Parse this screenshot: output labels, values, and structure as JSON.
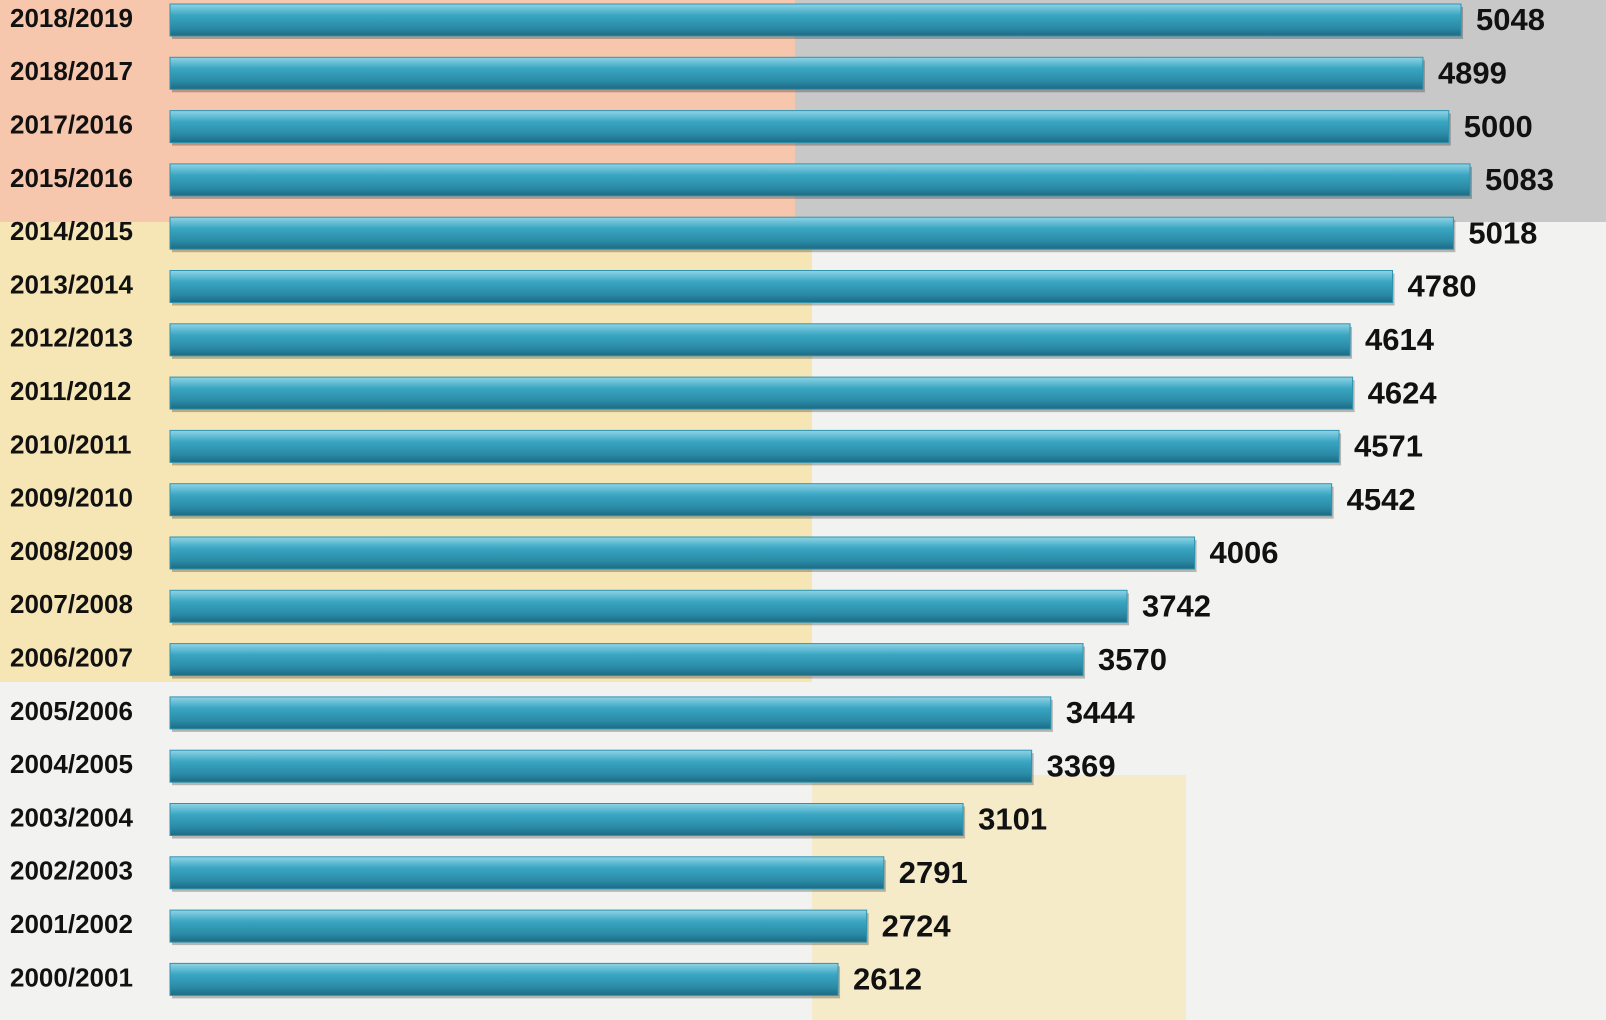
{
  "chart_data": {
    "type": "bar",
    "orientation": "horizontal",
    "categories": [
      "2018/2019",
      "2018/2017",
      "2017/2016",
      "2015/2016",
      "2014/2015",
      "2013/2014",
      "2012/2013",
      "2011/2012",
      "2010/2011",
      "2009/2010",
      "2008/2009",
      "2007/2008",
      "2006/2007",
      "2005/2006",
      "2004/2005",
      "2003/2004",
      "2002/2003",
      "2001/2002",
      "2000/2001"
    ],
    "values": [
      5048,
      4899,
      5000,
      5083,
      5018,
      4780,
      4614,
      4624,
      4571,
      4542,
      4006,
      3742,
      3570,
      3444,
      3369,
      3101,
      2791,
      2724,
      2612
    ],
    "color": "#2f93b0"
  }
}
